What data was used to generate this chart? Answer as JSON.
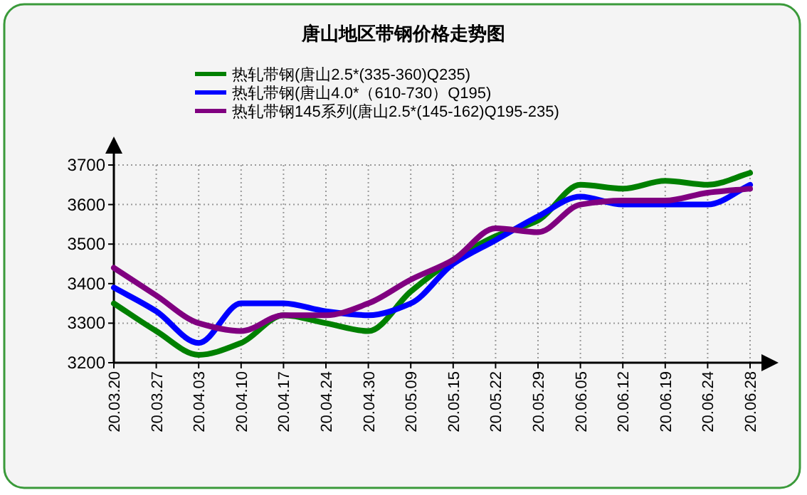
{
  "chart_data": {
    "type": "line",
    "title": "唐山地区带钢价格走势图",
    "categories": [
      "20.03.20",
      "20.03.27",
      "20.04.03",
      "20.04.10",
      "20.04.17",
      "20.04.24",
      "20.04.30",
      "20.05.09",
      "20.05.15",
      "20.05.22",
      "20.05.29",
      "20.06.05",
      "20.06.12",
      "20.06.19",
      "20.06.24",
      "20.06.28"
    ],
    "series": [
      {
        "name": "热轧带钢(唐山2.5*(335-360)Q235)",
        "color": "#008000",
        "values": [
          3350,
          3280,
          3220,
          3250,
          3320,
          3300,
          3280,
          3380,
          3460,
          3520,
          3560,
          3650,
          3640,
          3660,
          3650,
          3680
        ]
      },
      {
        "name": "热轧带钢(唐山4.0*（610-730）Q195)",
        "color": "#0000ff",
        "values": [
          3390,
          3330,
          3250,
          3350,
          3350,
          3330,
          3320,
          3350,
          3450,
          3510,
          3570,
          3620,
          3600,
          3600,
          3600,
          3650
        ]
      },
      {
        "name": "热轧带钢145系列(唐山2.5*(145-162)Q195-235)",
        "color": "#800080",
        "values": [
          3440,
          3370,
          3300,
          3280,
          3320,
          3320,
          3350,
          3410,
          3460,
          3540,
          3530,
          3600,
          3610,
          3610,
          3630,
          3640
        ]
      }
    ],
    "ylim": [
      3200,
      3700
    ],
    "yticks": [
      3200,
      3300,
      3400,
      3500,
      3600,
      3700
    ],
    "grid": true,
    "legend": "top",
    "marker": "none",
    "line_style": "solid"
  }
}
